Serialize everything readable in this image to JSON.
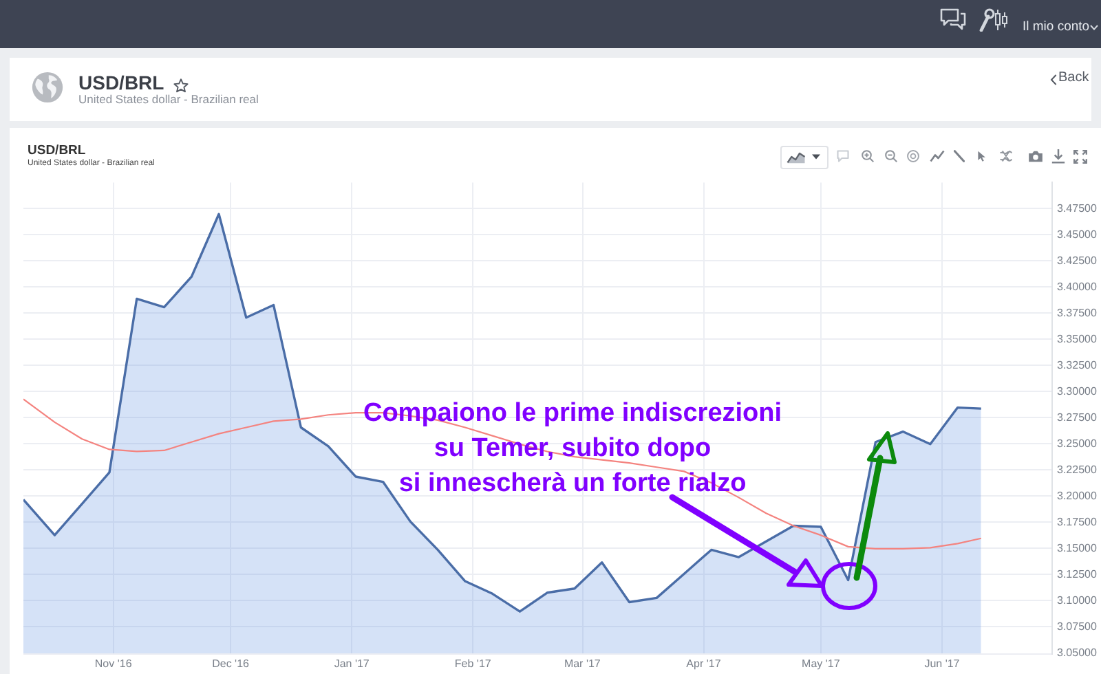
{
  "chart_data": {
    "type": "area",
    "title": "USD/BRL",
    "subtitle": "United States dollar - Brazilian real",
    "x": [
      "2016-10-09",
      "2016-10-17",
      "2016-10-24",
      "2016-10-31",
      "2016-11-07",
      "2016-11-14",
      "2016-11-21",
      "2016-11-28",
      "2016-12-05",
      "2016-12-12",
      "2016-12-19",
      "2016-12-26",
      "2017-01-02",
      "2017-01-09",
      "2017-01-16",
      "2017-01-23",
      "2017-01-30",
      "2017-02-06",
      "2017-02-13",
      "2017-02-20",
      "2017-02-27",
      "2017-03-06",
      "2017-03-13",
      "2017-03-20",
      "2017-03-27",
      "2017-04-03",
      "2017-04-10",
      "2017-04-17",
      "2017-04-24",
      "2017-05-01",
      "2017-05-08",
      "2017-05-15",
      "2017-05-22",
      "2017-05-29",
      "2017-06-05",
      "2017-06-11"
    ],
    "series": [
      {
        "type": "area",
        "color": "#4a6da7",
        "values": [
          3.197,
          3.163,
          3.193,
          3.223,
          3.389,
          3.381,
          3.41,
          3.47,
          3.371,
          3.383,
          3.266,
          3.248,
          3.219,
          3.214,
          3.176,
          3.149,
          3.119,
          3.107,
          3.09,
          3.108,
          3.112,
          3.137,
          3.099,
          3.103,
          3.126,
          3.149,
          3.142,
          3.157,
          3.172,
          3.171,
          3.12,
          3.252,
          3.262,
          3.25,
          3.285,
          3.284
        ]
      },
      {
        "type": "line",
        "color": "#f4837f",
        "values": [
          3.293,
          3.271,
          3.255,
          3.245,
          3.243,
          3.244,
          3.252,
          3.26,
          3.266,
          3.272,
          3.274,
          3.278,
          3.28,
          3.28,
          3.277,
          3.273,
          3.266,
          3.258,
          3.25,
          3.243,
          3.238,
          3.235,
          3.232,
          3.228,
          3.224,
          3.213,
          3.199,
          3.184,
          3.172,
          3.163,
          3.152,
          3.15,
          3.15,
          3.151,
          3.155,
          3.16
        ]
      }
    ],
    "xlim": [
      "2016-10-09",
      "2017-06-29"
    ],
    "xticks": [
      {
        "value": "2016-11-01",
        "label": "Nov '16"
      },
      {
        "value": "2016-12-01",
        "label": "Dec '16"
      },
      {
        "value": "2017-01-01",
        "label": "Jan '17"
      },
      {
        "value": "2017-02-01",
        "label": "Feb '17"
      },
      {
        "value": "2017-03-01",
        "label": "Mar '17"
      },
      {
        "value": "2017-04-01",
        "label": "Apr '17"
      },
      {
        "value": "2017-05-01",
        "label": "May '17"
      },
      {
        "value": "2017-06-01",
        "label": "Jun '17"
      }
    ],
    "ylim": [
      3.05,
      3.5
    ],
    "yticks": [
      {
        "value": 3.05,
        "label": "3.05000"
      },
      {
        "value": 3.075,
        "label": "3.07500"
      },
      {
        "value": 3.1,
        "label": "3.10000"
      },
      {
        "value": 3.125,
        "label": "3.12500"
      },
      {
        "value": 3.15,
        "label": "3.15000"
      },
      {
        "value": 3.175,
        "label": "3.17500"
      },
      {
        "value": 3.2,
        "label": "3.20000"
      },
      {
        "value": 3.225,
        "label": "3.22500"
      },
      {
        "value": 3.25,
        "label": "3.25000"
      },
      {
        "value": 3.275,
        "label": "3.27500"
      },
      {
        "value": 3.3,
        "label": "3.30000"
      },
      {
        "value": 3.325,
        "label": "3.32500"
      },
      {
        "value": 3.35,
        "label": "3.35000"
      },
      {
        "value": 3.375,
        "label": "3.37500"
      },
      {
        "value": 3.4,
        "label": "3.40000"
      },
      {
        "value": 3.425,
        "label": "3.42500"
      },
      {
        "value": 3.45,
        "label": "3.45000"
      },
      {
        "value": 3.475,
        "label": "3.47500"
      }
    ],
    "grid": true,
    "annotations": [
      "Compaiono le prime indiscrezioni\nsu Temer, subito dopo\nsi innescherà un forte rialzo",
      "Il mio conto",
      "Back"
    ]
  }
}
